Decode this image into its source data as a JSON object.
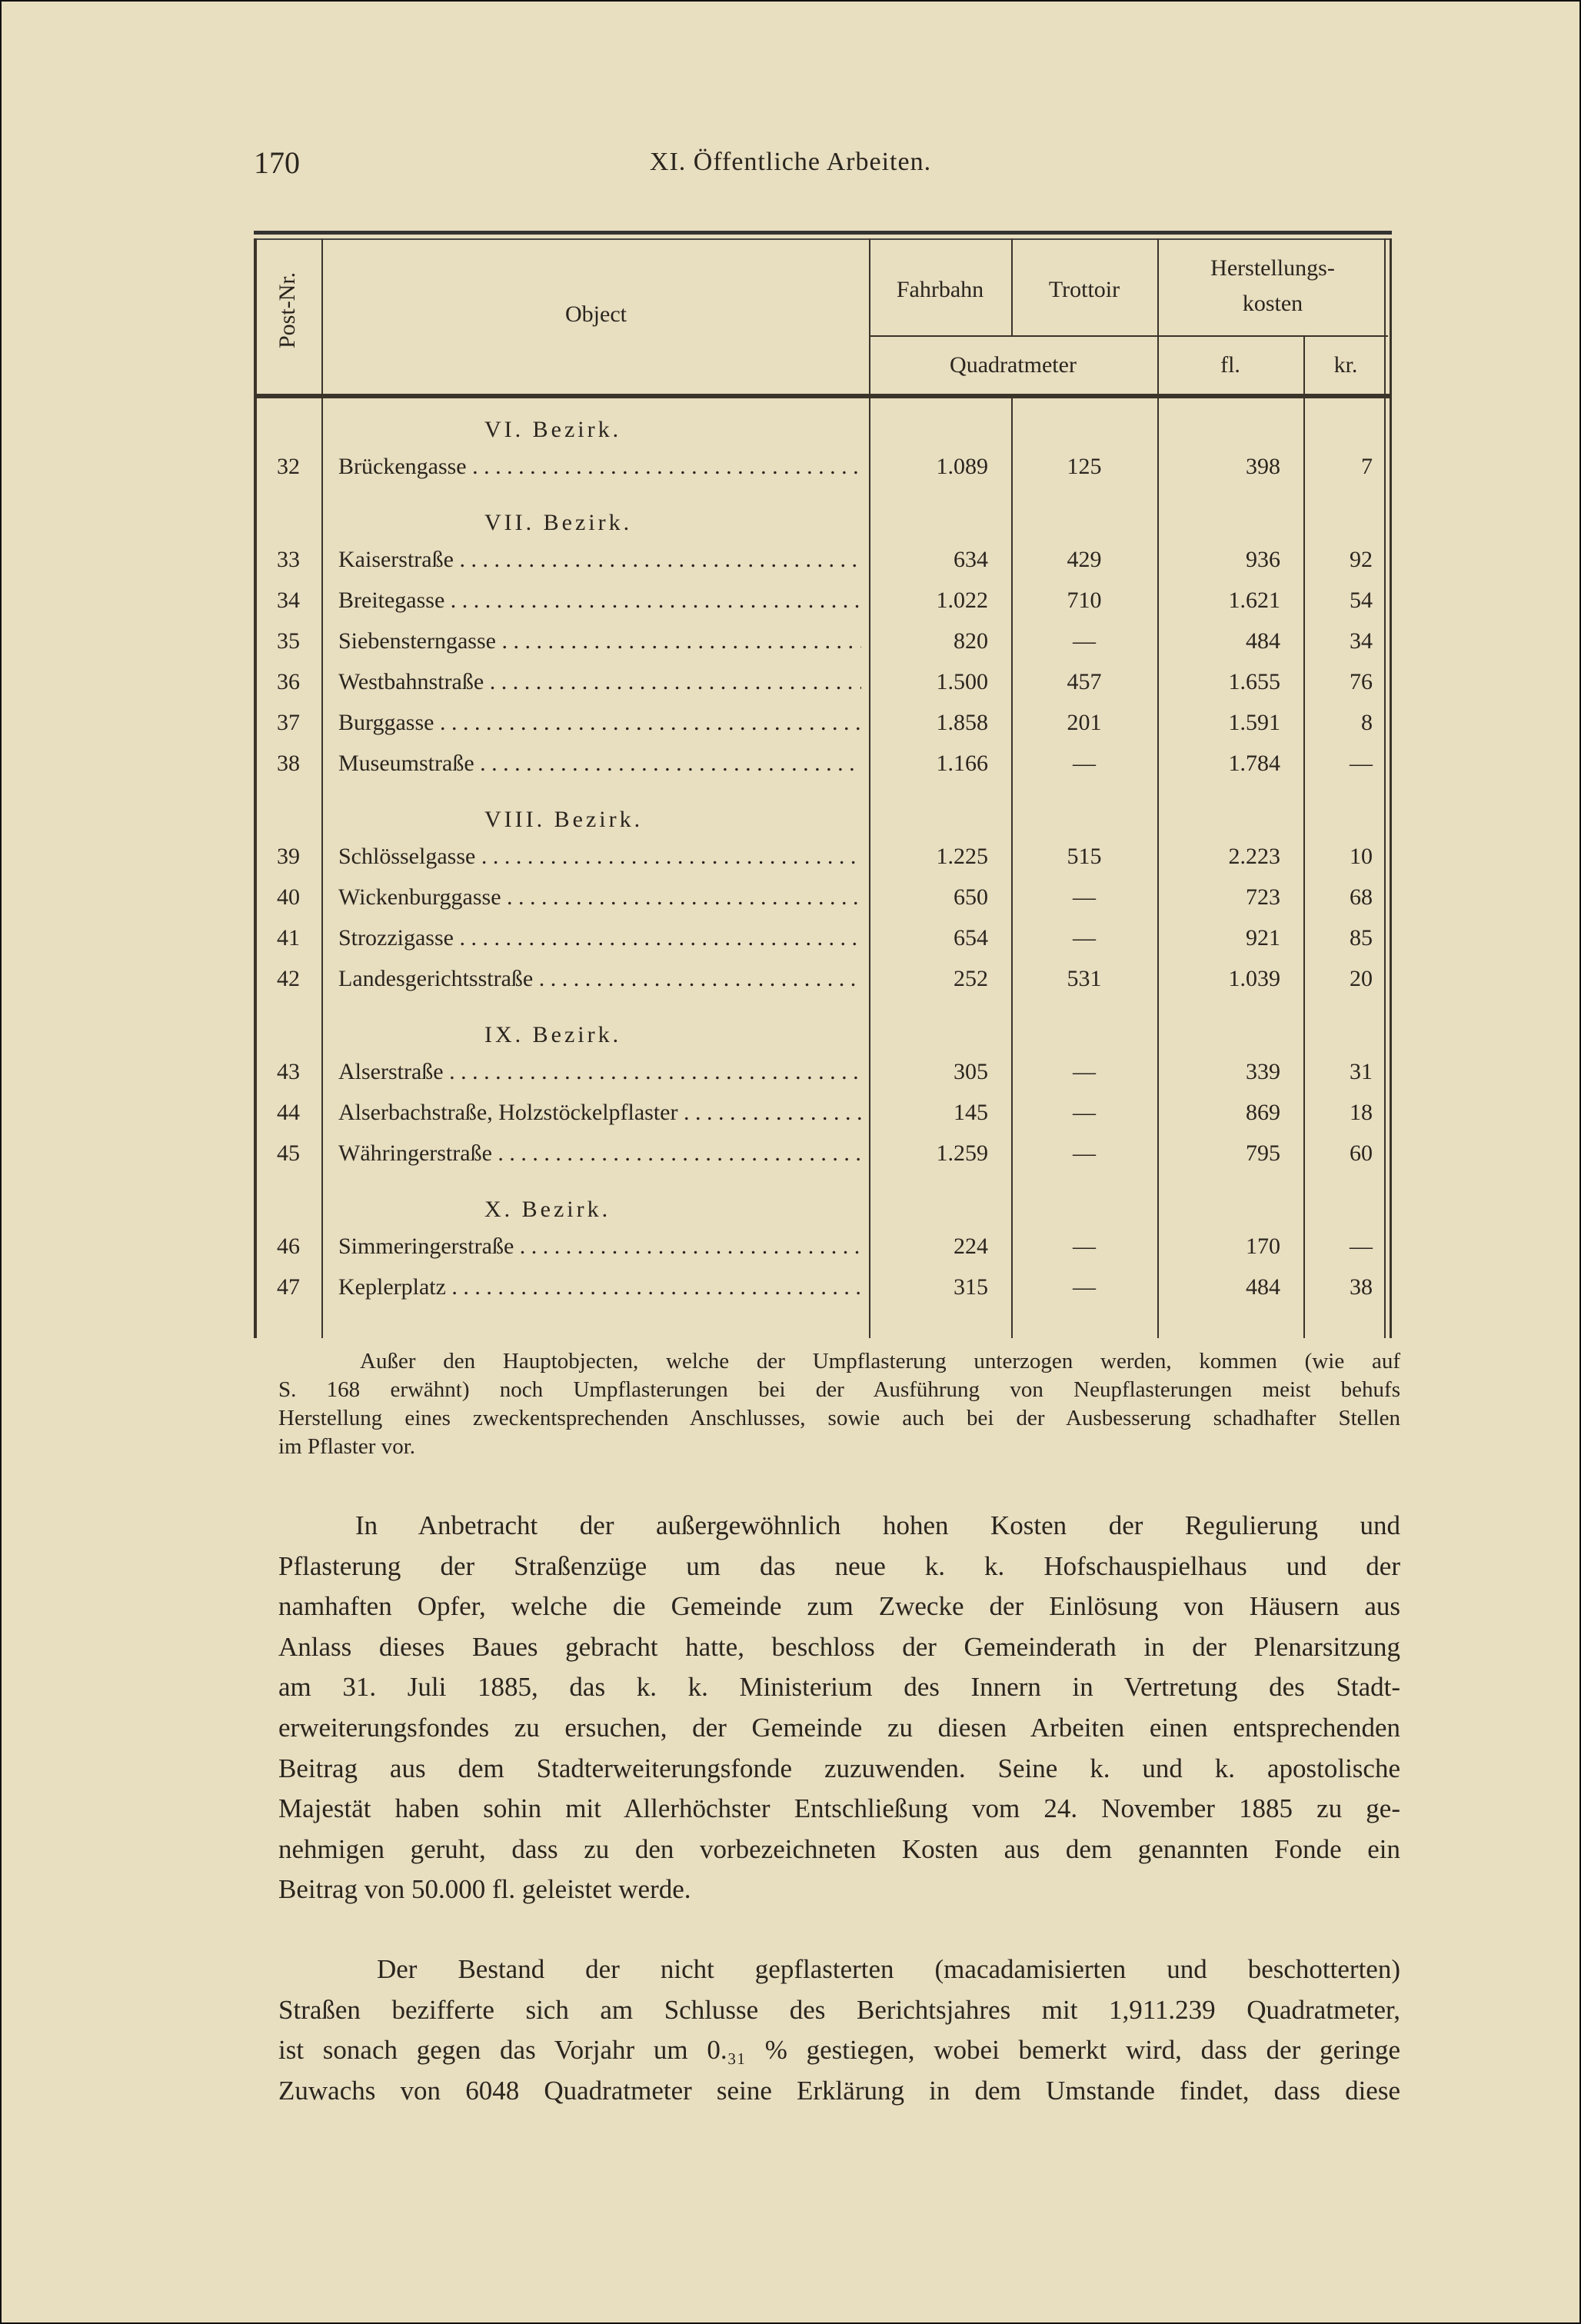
{
  "header": {
    "page_number": "170",
    "running_title": "XI. Öffentliche Arbeiten."
  },
  "table": {
    "headers": {
      "post_nr": "Post-Nr.",
      "object": "Object",
      "fahrbahn": "Fahrbahn",
      "trottoir": "Trottoir",
      "kosten": "Herstellungs-",
      "kosten2": "kosten",
      "quadratmeter": "Quadratmeter",
      "fl": "fl.",
      "kr": "kr."
    },
    "groups": [
      {
        "district": "VI. Bezirk.",
        "rows": [
          [
            "32",
            "Brückengasse",
            "1.089",
            "125",
            "398",
            "7"
          ]
        ]
      },
      {
        "district": "VII. Bezirk.",
        "rows": [
          [
            "33",
            "Kaiserstraße",
            "634",
            "429",
            "936",
            "92"
          ],
          [
            "34",
            "Breitegasse",
            "1.022",
            "710",
            "1.621",
            "54"
          ],
          [
            "35",
            "Siebensterngasse",
            "820",
            "—",
            "484",
            "34"
          ],
          [
            "36",
            "Westbahnstraße",
            "1.500",
            "457",
            "1.655",
            "76"
          ],
          [
            "37",
            "Burggasse",
            "1.858",
            "201",
            "1.591",
            "8"
          ],
          [
            "38",
            "Museumstraße",
            "1.166",
            "—",
            "1.784",
            "—"
          ]
        ]
      },
      {
        "district": "VIII. Bezirk.",
        "rows": [
          [
            "39",
            "Schlösselgasse",
            "1.225",
            "515",
            "2.223",
            "10"
          ],
          [
            "40",
            "Wickenburggasse",
            "650",
            "—",
            "723",
            "68"
          ],
          [
            "41",
            "Strozzigasse",
            "654",
            "—",
            "921",
            "85"
          ],
          [
            "42",
            "Landesgerichtsstraße",
            "252",
            "531",
            "1.039",
            "20"
          ]
        ]
      },
      {
        "district": "IX. Bezirk.",
        "rows": [
          [
            "43",
            "Alserstraße",
            "305",
            "—",
            "339",
            "31"
          ],
          [
            "44",
            "Alserbachstraße, Holzstöckelpflaster",
            "145",
            "—",
            "869",
            "18"
          ],
          [
            "45",
            "Währingerstraße",
            "1.259",
            "—",
            "795",
            "60"
          ]
        ]
      },
      {
        "district": "X. Bezirk.",
        "rows": [
          [
            "46",
            "Simmeringerstraße",
            "224",
            "—",
            "170",
            "—"
          ],
          [
            "47",
            "Keplerplatz",
            "315",
            "—",
            "484",
            "38"
          ]
        ]
      }
    ]
  },
  "footnote": [
    "Außer den Hauptobjecten, welche der Umpflasterung unterzogen werden, kommen (wie auf",
    "S. 168 erwähnt) noch Umpflasterungen bei der Ausführung von Neupflasterungen meist behufs",
    "Herstellung eines zweckentsprechenden Anschlusses, sowie auch bei der Ausbesserung schadhafter Stellen",
    "im Pflaster vor."
  ],
  "paragraph1": [
    "In Anbetracht der außergewöhnlich hohen Kosten der Regulierung und",
    "Pflasterung der Straßenzüge um das neue k. k. Hofschauspielhaus und der",
    "namhaften Opfer, welche die Gemeinde zum Zwecke der Einlösung von Häusern aus",
    "Anlass dieses Baues gebracht hatte, beschloss der Gemeinderath in der Plenarsitzung",
    "am 31. Juli 1885, das k. k. Ministerium des Innern in Vertretung des Stadt-",
    "erweiterungsfondes zu ersuchen, der Gemeinde zu diesen Arbeiten einen entsprechenden",
    "Beitrag aus dem Stadterweiterungsfonde zuzuwenden. Seine k. und k. apostolische",
    "Majestät haben sohin mit Allerhöchster Entschließung vom 24. November 1885 zu ge-",
    "nehmigen geruht, dass zu den vorbezeichneten Kosten aus dem genannten Fonde ein",
    "Beitrag von 50.000 fl. geleistet werde."
  ],
  "paragraph2": [
    "Der Bestand der nicht gepflasterten (macadamisierten und beschotterten)",
    "Straßen bezifferte sich am Schlusse des Berichtsjahres mit 1,911.239 Quadratmeter,",
    "ist sonach gegen das Vorjahr um 0.₃₁ % gestiegen, wobei bemerkt wird, dass der geringe",
    "Zuwachs von 6048 Quadratmeter seine Erklärung in dem Umstande findet, dass diese"
  ]
}
